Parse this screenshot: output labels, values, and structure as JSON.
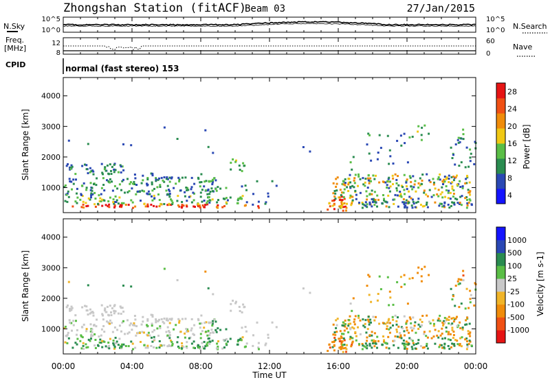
{
  "header": {
    "station": "Zhongshan Station (fitACF)",
    "beam": "Beam 03",
    "date": "27/Jan/2015"
  },
  "aux_panels": {
    "nsky_label": "N.Sky",
    "nsky_ticks": [
      "10^5",
      "10^0"
    ],
    "nsearch_label": "N.Search",
    "nsearch_ticks": [
      "10^5",
      "10^0"
    ],
    "freq_label_1": "Freq.",
    "freq_label_2": "[MHz]",
    "freq_ticks": [
      "12",
      "8"
    ],
    "nave_label": "Nave",
    "nave_ticks": [
      "60",
      "0"
    ],
    "cpid_label": "CPID",
    "cpid_value": "normal (fast stereo) 153"
  },
  "colors": {
    "power": [
      "#1414ff",
      "#2a48b4",
      "#2a8c50",
      "#5abe46",
      "#f0c814",
      "#f08c0a",
      "#f05014",
      "#e61414"
    ],
    "velocity": [
      "#e61414",
      "#f05014",
      "#f08c0a",
      "#f0b428",
      "#c8c8c8",
      "#5abe46",
      "#2a8c50",
      "#2a48b4",
      "#1414ff"
    ]
  },
  "chart_data": [
    {
      "type": "heatmap",
      "name": "power",
      "ylabel": "Slant Range [km]",
      "xlabel": "Time UT",
      "x_ticks": [
        "00:00",
        "04:00",
        "08:00",
        "12:00",
        "16:00",
        "20:00",
        "00:00"
      ],
      "y_ticks": [
        1000,
        2000,
        3000,
        4000
      ],
      "ylim": [
        180,
        4600
      ],
      "xlim_hours": [
        0,
        24
      ],
      "colorbar_label": "Power [dB]",
      "colorbar_ticks": [
        "28",
        "24",
        "20",
        "16",
        "12",
        "8",
        "4"
      ],
      "colorbar_range": [
        0,
        30
      ]
    },
    {
      "type": "heatmap",
      "name": "velocity",
      "ylabel": "Slant Range [km]",
      "xlabel": "Time UT",
      "x_ticks": [
        "00:00",
        "04:00",
        "08:00",
        "12:00",
        "16:00",
        "20:00",
        "00:00"
      ],
      "y_ticks": [
        1000,
        2000,
        3000,
        4000
      ],
      "ylim": [
        180,
        4600
      ],
      "xlim_hours": [
        0,
        24
      ],
      "colorbar_label": "Velocity [m s-1]",
      "colorbar_ticks": [
        "1000",
        "500",
        "100",
        "25",
        "-25",
        "-100",
        "-500",
        "-1000"
      ]
    }
  ]
}
